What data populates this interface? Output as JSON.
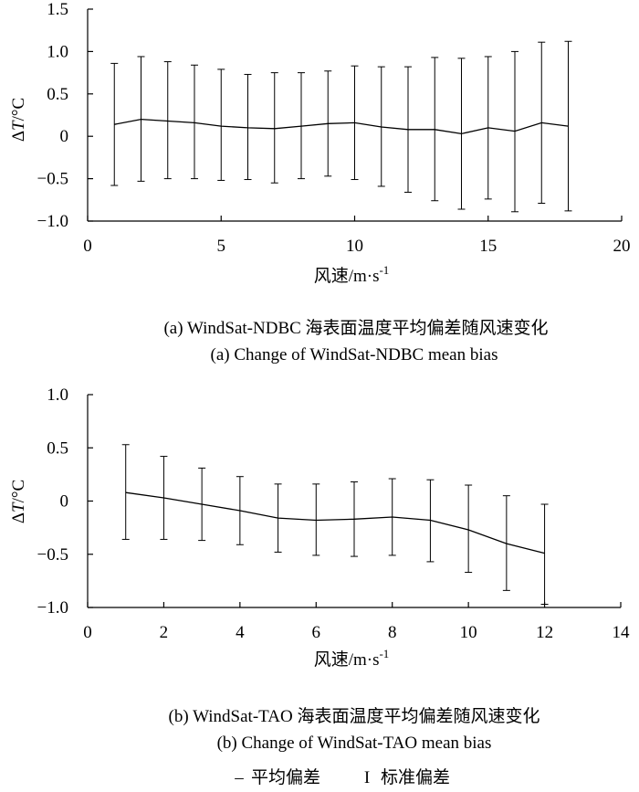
{
  "chart_data": [
    {
      "type": "line",
      "panel": "a",
      "caption_cn": "(a) WindSat-NDBC 海表面温度平均偏差随风速变化",
      "caption_en": "(a) Change of WindSat-NDBC mean bias",
      "xlabel": "风速/m·s",
      "xlabel_sup": "-1",
      "ylabel_delta": "Δ",
      "ylabel_var": "T",
      "ylabel_unit": "/°C",
      "xlim": [
        0,
        20
      ],
      "ylim": [
        -1.0,
        1.5
      ],
      "xticks": [
        0,
        5,
        10,
        15,
        20
      ],
      "xtick_labels": [
        "0",
        "5",
        "10",
        "15",
        "20"
      ],
      "yticks": [
        -1.0,
        -0.5,
        0,
        0.5,
        1.0,
        1.5
      ],
      "ytick_labels": [
        "−1.0",
        "−0.5",
        "0",
        "0.5",
        "1.0",
        "1.5"
      ],
      "grid": false,
      "series": [
        {
          "x": [
            1,
            2,
            3,
            4,
            5,
            6,
            7,
            8,
            9,
            10,
            11,
            12,
            13,
            14,
            15,
            16,
            17,
            18
          ],
          "mean": [
            0.14,
            0.2,
            0.18,
            0.16,
            0.12,
            0.1,
            0.09,
            0.12,
            0.15,
            0.16,
            0.11,
            0.08,
            0.08,
            0.03,
            0.1,
            0.06,
            0.16,
            0.12
          ],
          "upper": [
            0.86,
            0.94,
            0.88,
            0.84,
            0.79,
            0.73,
            0.75,
            0.75,
            0.77,
            0.83,
            0.82,
            0.82,
            0.93,
            0.92,
            0.94,
            1.0,
            1.11,
            1.12
          ],
          "lower": [
            -0.58,
            -0.53,
            -0.5,
            -0.5,
            -0.52,
            -0.51,
            -0.55,
            -0.5,
            -0.47,
            -0.51,
            -0.59,
            -0.66,
            -0.76,
            -0.86,
            -0.74,
            -0.89,
            -0.79,
            -0.88
          ]
        }
      ]
    },
    {
      "type": "line",
      "panel": "b",
      "caption_cn": "(b)  WindSat-TAO 海表面温度平均偏差随风速变化",
      "caption_en": "(b) Change of WindSat-TAO mean bias",
      "xlabel": "风速/m·s",
      "xlabel_sup": "-1",
      "ylabel_delta": "Δ",
      "ylabel_var": "T",
      "ylabel_unit": "/°C",
      "xlim": [
        0,
        14
      ],
      "ylim": [
        -1.0,
        1.0
      ],
      "xticks": [
        0,
        2,
        4,
        6,
        8,
        10,
        12,
        14
      ],
      "xtick_labels": [
        "0",
        "2",
        "4",
        "6",
        "8",
        "10",
        "12",
        "14"
      ],
      "yticks": [
        -1.0,
        -0.5,
        0,
        0.5,
        1.0
      ],
      "ytick_labels": [
        "−1.0",
        "−0.5",
        "0",
        "0.5",
        "1.0"
      ],
      "grid": false,
      "series": [
        {
          "x": [
            1,
            2,
            3,
            4,
            5,
            6,
            7,
            8,
            9,
            10,
            11,
            12
          ],
          "mean": [
            0.08,
            0.03,
            -0.03,
            -0.09,
            -0.16,
            -0.18,
            -0.17,
            -0.15,
            -0.18,
            -0.27,
            -0.4,
            -0.49
          ],
          "upper": [
            0.53,
            0.42,
            0.31,
            0.23,
            0.16,
            0.16,
            0.18,
            0.21,
            0.2,
            0.15,
            0.05,
            -0.03
          ],
          "lower": [
            -0.36,
            -0.36,
            -0.37,
            -0.41,
            -0.48,
            -0.51,
            -0.52,
            -0.51,
            -0.57,
            -0.67,
            -0.84,
            -0.97
          ]
        }
      ]
    }
  ],
  "legend": {
    "mean_symbol": "–",
    "mean_label": "平均偏差",
    "std_symbol": "I",
    "std_label": "标准偏差"
  }
}
